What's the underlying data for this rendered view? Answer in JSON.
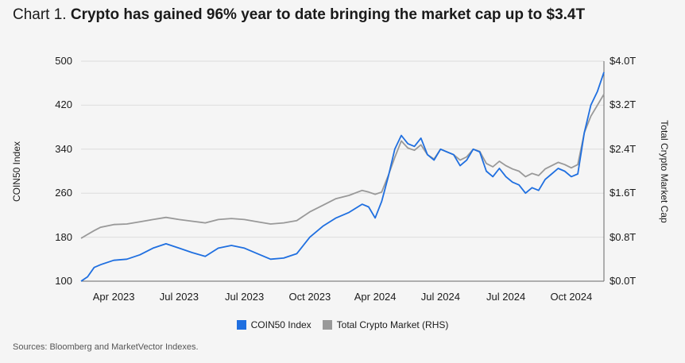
{
  "title": {
    "label": "Chart 1.",
    "headline": "Crypto has gained 96% year to date bringing the market cap up to $3.4T"
  },
  "chart_data": {
    "type": "line",
    "title": "Crypto has gained 96% year to date bringing the market cap up to $3.4T",
    "ylabel_left": "COIN50 Index",
    "ylabel_right": "Total Crypto Market Cap",
    "ylim_left": [
      100,
      500
    ],
    "ylim_right": [
      0,
      4
    ],
    "left_ticks": [
      "500",
      "420",
      "340",
      "260",
      "180",
      "100"
    ],
    "right_ticks": [
      "$4.0T",
      "$3.2T",
      "$2.4T",
      "$1.6T",
      "$0.8T",
      "$0.0T"
    ],
    "x_tick_labels": [
      "Apr 2023",
      "Jul 2023",
      "Jul 2023",
      "Oct 2023",
      "Apr 2024",
      "Jul 2024",
      "Jul 2024",
      "Oct 2024"
    ],
    "x_tick_positions": [
      0.5,
      1.5,
      2.5,
      3.5,
      4.5,
      5.5,
      6.5,
      7.5
    ],
    "x_range": [
      0,
      8
    ],
    "series": [
      {
        "name": "COIN50 Index",
        "axis": "left",
        "color": "#1f6fe0",
        "x": [
          0,
          0.1,
          0.2,
          0.3,
          0.5,
          0.7,
          0.9,
          1.1,
          1.3,
          1.5,
          1.7,
          1.9,
          2.1,
          2.3,
          2.5,
          2.7,
          2.9,
          3.1,
          3.3,
          3.5,
          3.7,
          3.9,
          4.1,
          4.3,
          4.4,
          4.5,
          4.6,
          4.7,
          4.8,
          4.9,
          5.0,
          5.1,
          5.2,
          5.3,
          5.4,
          5.5,
          5.6,
          5.7,
          5.8,
          5.9,
          6.0,
          6.1,
          6.2,
          6.3,
          6.4,
          6.5,
          6.6,
          6.7,
          6.8,
          6.9,
          7.0,
          7.1,
          7.2,
          7.3,
          7.4,
          7.5,
          7.6,
          7.7,
          7.8,
          7.9,
          8.0
        ],
        "values": [
          100,
          108,
          125,
          130,
          138,
          140,
          148,
          160,
          168,
          160,
          152,
          145,
          160,
          165,
          160,
          150,
          140,
          142,
          150,
          180,
          200,
          215,
          225,
          240,
          235,
          215,
          245,
          290,
          340,
          365,
          350,
          345,
          360,
          330,
          320,
          340,
          335,
          330,
          310,
          320,
          340,
          335,
          300,
          290,
          305,
          290,
          280,
          275,
          260,
          270,
          265,
          285,
          295,
          305,
          300,
          290,
          295,
          370,
          420,
          445,
          480
        ]
      },
      {
        "name": "Total Crypto Market (RHS)",
        "axis": "right",
        "color": "#999999",
        "x": [
          0,
          0.1,
          0.2,
          0.3,
          0.5,
          0.7,
          0.9,
          1.1,
          1.3,
          1.5,
          1.7,
          1.9,
          2.1,
          2.3,
          2.5,
          2.7,
          2.9,
          3.1,
          3.3,
          3.5,
          3.7,
          3.9,
          4.1,
          4.3,
          4.4,
          4.5,
          4.6,
          4.7,
          4.8,
          4.9,
          5.0,
          5.1,
          5.2,
          5.3,
          5.4,
          5.5,
          5.6,
          5.7,
          5.8,
          5.9,
          6.0,
          6.1,
          6.2,
          6.3,
          6.4,
          6.5,
          6.6,
          6.7,
          6.8,
          6.9,
          7.0,
          7.1,
          7.2,
          7.3,
          7.4,
          7.5,
          7.6,
          7.7,
          7.8,
          7.9,
          8.0
        ],
        "values": [
          0.78,
          0.85,
          0.92,
          0.98,
          1.03,
          1.04,
          1.08,
          1.12,
          1.16,
          1.12,
          1.09,
          1.06,
          1.12,
          1.14,
          1.12,
          1.08,
          1.04,
          1.06,
          1.1,
          1.26,
          1.38,
          1.5,
          1.56,
          1.65,
          1.62,
          1.58,
          1.62,
          1.92,
          2.25,
          2.55,
          2.42,
          2.38,
          2.48,
          2.3,
          2.22,
          2.4,
          2.35,
          2.3,
          2.2,
          2.26,
          2.4,
          2.36,
          2.14,
          2.08,
          2.18,
          2.1,
          2.04,
          2.0,
          1.9,
          1.96,
          1.92,
          2.04,
          2.1,
          2.16,
          2.12,
          2.06,
          2.12,
          2.7,
          3.0,
          3.2,
          3.4
        ]
      }
    ],
    "legend_position": "bottom-center",
    "grid": "horizontal"
  },
  "source": "Sources: Bloomberg and MarketVector Indexes."
}
